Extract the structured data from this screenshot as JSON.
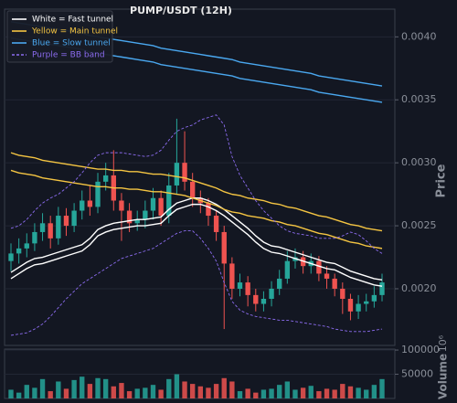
{
  "chart_data": {
    "type": "candlestick",
    "title": "PUMP/USDT (12H)",
    "ylabel": "Price",
    "up_color": "#26a69a",
    "down_color": "#ef5350",
    "grid": true,
    "legend": "upper left",
    "ylim": [
      0.00155,
      0.00422
    ],
    "yticks": [
      {
        "value": 0.004,
        "label": "0.0040"
      },
      0.0035,
      {
        "value": 0.003,
        "label": "0.0030"
      },
      0.0025,
      {
        "value": 0.002,
        "label": "0.0020"
      }
    ],
    "open": [
      0.00222,
      0.00228,
      0.00232,
      0.00236,
      0.00245,
      0.00252,
      0.0024,
      0.00258,
      0.0025,
      0.00262,
      0.0027,
      0.00265,
      0.00285,
      0.0029,
      0.0027,
      0.00262,
      0.00252,
      0.00255,
      0.00262,
      0.00272,
      0.00258,
      0.00282,
      0.003,
      0.00285,
      0.00272,
      0.00268,
      0.00258,
      0.00245,
      0.0022,
      0.002,
      0.00205,
      0.00195,
      0.00188,
      0.00192,
      0.002,
      0.00208,
      0.00222,
      0.00225,
      0.00218,
      0.00222,
      0.00212,
      0.00208,
      0.002,
      0.00192,
      0.00182,
      0.00188,
      0.0019,
      0.00195
    ],
    "high": [
      0.00236,
      0.0024,
      0.00244,
      0.00252,
      0.0026,
      0.00258,
      0.00265,
      0.00264,
      0.00268,
      0.00278,
      0.00282,
      0.00292,
      0.003,
      0.0031,
      0.00276,
      0.00268,
      0.00262,
      0.0027,
      0.0028,
      0.00278,
      0.00292,
      0.00335,
      0.00325,
      0.00292,
      0.00278,
      0.00272,
      0.00262,
      0.0025,
      0.00225,
      0.00212,
      0.0021,
      0.002,
      0.00198,
      0.00206,
      0.00215,
      0.0023,
      0.00232,
      0.0023,
      0.00228,
      0.00226,
      0.00218,
      0.00212,
      0.00205,
      0.00196,
      0.00195,
      0.00196,
      0.00202,
      0.00212
    ],
    "low": [
      0.00214,
      0.0022,
      0.00225,
      0.0023,
      0.00238,
      0.00232,
      0.00235,
      0.00242,
      0.00245,
      0.00255,
      0.00258,
      0.0026,
      0.00278,
      0.00262,
      0.00238,
      0.00245,
      0.00246,
      0.00248,
      0.00255,
      0.0025,
      0.00252,
      0.00275,
      0.00278,
      0.00265,
      0.0026,
      0.0025,
      0.00238,
      0.00168,
      0.00192,
      0.00194,
      0.00186,
      0.00182,
      0.00182,
      0.00186,
      0.00195,
      0.00204,
      0.00216,
      0.00212,
      0.00212,
      0.00206,
      0.002,
      0.00194,
      0.0018,
      0.00175,
      0.00176,
      0.00182,
      0.00185,
      0.0019
    ],
    "close": [
      0.00228,
      0.00232,
      0.00236,
      0.00245,
      0.00252,
      0.0024,
      0.00258,
      0.0025,
      0.00262,
      0.0027,
      0.00265,
      0.00285,
      0.0029,
      0.0027,
      0.00262,
      0.00252,
      0.00255,
      0.00262,
      0.00272,
      0.00258,
      0.00282,
      0.003,
      0.00285,
      0.00272,
      0.00268,
      0.00258,
      0.00245,
      0.0022,
      0.002,
      0.00205,
      0.00195,
      0.00188,
      0.00192,
      0.002,
      0.00208,
      0.00222,
      0.00225,
      0.00218,
      0.00222,
      0.00212,
      0.00208,
      0.002,
      0.00192,
      0.00182,
      0.00188,
      0.0019,
      0.00195,
      0.00205
    ],
    "overlays": [
      {
        "name": "White = Fast tunnel",
        "color": "#ffffff",
        "dashed": false,
        "upper": [
          0.00213,
          0.00217,
          0.00221,
          0.00224,
          0.00225,
          0.00227,
          0.00229,
          0.00231,
          0.00233,
          0.00235,
          0.0024,
          0.00247,
          0.0025,
          0.00252,
          0.00253,
          0.00254,
          0.00255,
          0.00255,
          0.00256,
          0.00257,
          0.00263,
          0.00268,
          0.0027,
          0.00272,
          0.00272,
          0.0027,
          0.00267,
          0.00263,
          0.00258,
          0.00253,
          0.00248,
          0.00242,
          0.00237,
          0.00234,
          0.00233,
          0.00231,
          0.00229,
          0.00227,
          0.00225,
          0.00223,
          0.00221,
          0.0022,
          0.00217,
          0.00214,
          0.00212,
          0.0021,
          0.00208,
          0.00207
        ],
        "lower": [
          0.00208,
          0.00212,
          0.00216,
          0.00219,
          0.0022,
          0.00222,
          0.00224,
          0.00226,
          0.00228,
          0.0023,
          0.00235,
          0.00242,
          0.00245,
          0.00247,
          0.00248,
          0.00249,
          0.0025,
          0.0025,
          0.00251,
          0.00252,
          0.00258,
          0.00263,
          0.00265,
          0.00267,
          0.00267,
          0.00265,
          0.00262,
          0.00258,
          0.00253,
          0.00248,
          0.00243,
          0.00237,
          0.00232,
          0.00229,
          0.00228,
          0.00226,
          0.00224,
          0.00222,
          0.0022,
          0.00218,
          0.00216,
          0.00215,
          0.00212,
          0.00209,
          0.00207,
          0.00205,
          0.00203,
          0.00202
        ]
      },
      {
        "name": "Yellow = Main tunnel",
        "color": "#f5c542",
        "dashed": false,
        "upper": [
          0.00308,
          0.00306,
          0.00305,
          0.00304,
          0.00302,
          0.00301,
          0.003,
          0.00299,
          0.00298,
          0.00297,
          0.00296,
          0.00295,
          0.00295,
          0.00294,
          0.00294,
          0.00293,
          0.00293,
          0.00292,
          0.00291,
          0.00291,
          0.0029,
          0.00289,
          0.00288,
          0.00286,
          0.00284,
          0.00282,
          0.0028,
          0.00277,
          0.00275,
          0.00274,
          0.00272,
          0.00271,
          0.0027,
          0.00268,
          0.00267,
          0.00265,
          0.00264,
          0.00262,
          0.0026,
          0.00258,
          0.00257,
          0.00255,
          0.00253,
          0.00251,
          0.0025,
          0.00248,
          0.00247,
          0.00246
        ],
        "lower": [
          0.00294,
          0.00292,
          0.00291,
          0.0029,
          0.00288,
          0.00287,
          0.00286,
          0.00285,
          0.00284,
          0.00283,
          0.00282,
          0.00281,
          0.00281,
          0.0028,
          0.0028,
          0.00279,
          0.00279,
          0.00278,
          0.00277,
          0.00277,
          0.00276,
          0.00275,
          0.00274,
          0.00272,
          0.0027,
          0.00268,
          0.00266,
          0.00263,
          0.00261,
          0.0026,
          0.00258,
          0.00257,
          0.00256,
          0.00254,
          0.00253,
          0.00251,
          0.0025,
          0.00248,
          0.00246,
          0.00244,
          0.00243,
          0.00241,
          0.00239,
          0.00237,
          0.00236,
          0.00234,
          0.00233,
          0.00232
        ]
      },
      {
        "name": "Blue = Slow tunnel",
        "color": "#4aa8f0",
        "dashed": false,
        "upper": [
          0.00412,
          0.00411,
          0.0041,
          0.00409,
          0.00408,
          0.00407,
          0.00406,
          0.00405,
          0.00404,
          0.00403,
          0.00401,
          0.004,
          0.00399,
          0.00398,
          0.00397,
          0.00396,
          0.00395,
          0.00394,
          0.00393,
          0.00391,
          0.0039,
          0.00389,
          0.00388,
          0.00387,
          0.00386,
          0.00385,
          0.00384,
          0.00383,
          0.00382,
          0.0038,
          0.00379,
          0.00378,
          0.00377,
          0.00376,
          0.00375,
          0.00374,
          0.00373,
          0.00372,
          0.00371,
          0.00369,
          0.00368,
          0.00367,
          0.00366,
          0.00365,
          0.00364,
          0.00363,
          0.00362,
          0.00361
        ],
        "lower": [
          0.00399,
          0.00398,
          0.00397,
          0.00396,
          0.00395,
          0.00394,
          0.00393,
          0.00392,
          0.00391,
          0.0039,
          0.00388,
          0.00387,
          0.00386,
          0.00385,
          0.00384,
          0.00383,
          0.00382,
          0.00381,
          0.0038,
          0.00378,
          0.00377,
          0.00376,
          0.00375,
          0.00374,
          0.00373,
          0.00372,
          0.00371,
          0.0037,
          0.00369,
          0.00367,
          0.00366,
          0.00365,
          0.00364,
          0.00363,
          0.00362,
          0.00361,
          0.0036,
          0.00359,
          0.00358,
          0.00356,
          0.00355,
          0.00354,
          0.00353,
          0.00352,
          0.00351,
          0.0035,
          0.00349,
          0.00348
        ]
      },
      {
        "name": "Purple = BB band",
        "color": "#8c6cf0",
        "dashed": true,
        "upper": [
          0.00248,
          0.0025,
          0.00255,
          0.00262,
          0.00268,
          0.00272,
          0.00275,
          0.0028,
          0.00285,
          0.00292,
          0.003,
          0.00306,
          0.00308,
          0.00308,
          0.00308,
          0.00307,
          0.00306,
          0.00305,
          0.00306,
          0.0031,
          0.00318,
          0.00325,
          0.00328,
          0.0033,
          0.00334,
          0.00336,
          0.00338,
          0.0033,
          0.00305,
          0.0029,
          0.0028,
          0.0027,
          0.00262,
          0.00256,
          0.0025,
          0.00246,
          0.00244,
          0.00243,
          0.00242,
          0.0024,
          0.0024,
          0.0024,
          0.00242,
          0.00245,
          0.00243,
          0.00238,
          0.00232,
          0.00228
        ],
        "lower": [
          0.00163,
          0.00164,
          0.00165,
          0.00168,
          0.00172,
          0.00178,
          0.00185,
          0.00192,
          0.00198,
          0.00204,
          0.00208,
          0.00212,
          0.00216,
          0.0022,
          0.00224,
          0.00226,
          0.00228,
          0.0023,
          0.00232,
          0.00236,
          0.0024,
          0.00244,
          0.00246,
          0.00246,
          0.0024,
          0.00232,
          0.00222,
          0.00205,
          0.0019,
          0.00183,
          0.0018,
          0.00178,
          0.00177,
          0.00176,
          0.00175,
          0.00175,
          0.00174,
          0.00173,
          0.00172,
          0.00171,
          0.0017,
          0.00168,
          0.00167,
          0.00166,
          0.00166,
          0.00166,
          0.00167,
          0.00168
        ]
      }
    ],
    "volume": {
      "ylabel": "Volume",
      "offset_label": "10⁶",
      "ylim": [
        0,
        102000
      ],
      "yticks": [
        100000,
        50000
      ],
      "values": [
        18000,
        12000,
        28000,
        22000,
        40000,
        15000,
        35000,
        20000,
        38000,
        45000,
        30000,
        42000,
        40000,
        25000,
        32000,
        15000,
        20000,
        22000,
        28000,
        18000,
        40000,
        50000,
        35000,
        30000,
        25000,
        22000,
        30000,
        42000,
        35000,
        15000,
        20000,
        12000,
        18000,
        20000,
        28000,
        35000,
        18000,
        22000,
        26000,
        15000,
        20000,
        18000,
        30000,
        25000,
        22000,
        18000,
        28000,
        40000
      ]
    }
  }
}
